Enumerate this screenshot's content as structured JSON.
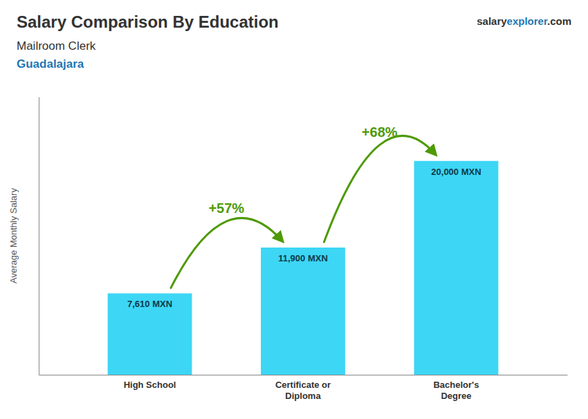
{
  "chart_data": {
    "type": "bar",
    "title": "Salary Comparison By Education",
    "subtitle": [
      "Mailroom Clerk",
      "Guadalajara"
    ],
    "brand": [
      "salary",
      "explorer",
      ".com"
    ],
    "ylabel": "Average Monthly Salary",
    "categories": [
      "High School",
      "Certificate or\nDiploma",
      "Bachelor's\nDegree"
    ],
    "values": [
      7610,
      11900,
      20000
    ],
    "value_labels": [
      "7,610 MXN",
      "11,900 MXN",
      "20,000 MXN"
    ],
    "data_labels": true,
    "annotations": [
      "+57%",
      "+68%"
    ],
    "color": "#3dd6f5",
    "ylim": [
      0,
      26000
    ],
    "tick_labels": "x",
    "grid": false
  }
}
